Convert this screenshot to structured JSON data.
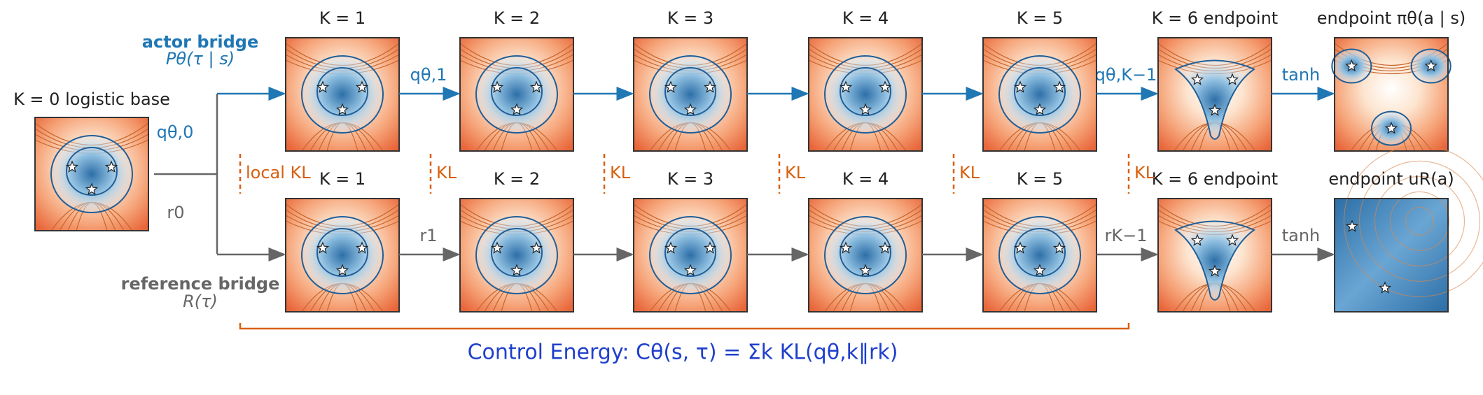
{
  "base": {
    "title": "K = 0 logistic base"
  },
  "actor": {
    "title": "actor bridge",
    "subtitle": "Pθ(τ | s)",
    "panels": [
      "K = 1",
      "K = 2",
      "K = 3",
      "K = 4",
      "K = 5",
      "K = 6 endpoint",
      "endpoint πθ(a | s)"
    ],
    "edge_labels": [
      "qθ,0",
      "qθ,1",
      "qθ,K−1",
      "tanh"
    ]
  },
  "reference": {
    "title": "reference bridge",
    "subtitle": "R(τ)",
    "panels": [
      "K = 1",
      "K = 2",
      "K = 3",
      "K = 4",
      "K = 5",
      "K = 6 endpoint",
      "endpoint uR(a)"
    ],
    "edge_labels": [
      "r0",
      "r1",
      "rK−1",
      "tanh"
    ]
  },
  "kl_labels": [
    "local KL",
    "KL",
    "KL",
    "KL",
    "KL",
    "KL"
  ],
  "footer": "Control Energy: Cθ(s, τ) = Σk KL(qθ,k‖rk)"
}
